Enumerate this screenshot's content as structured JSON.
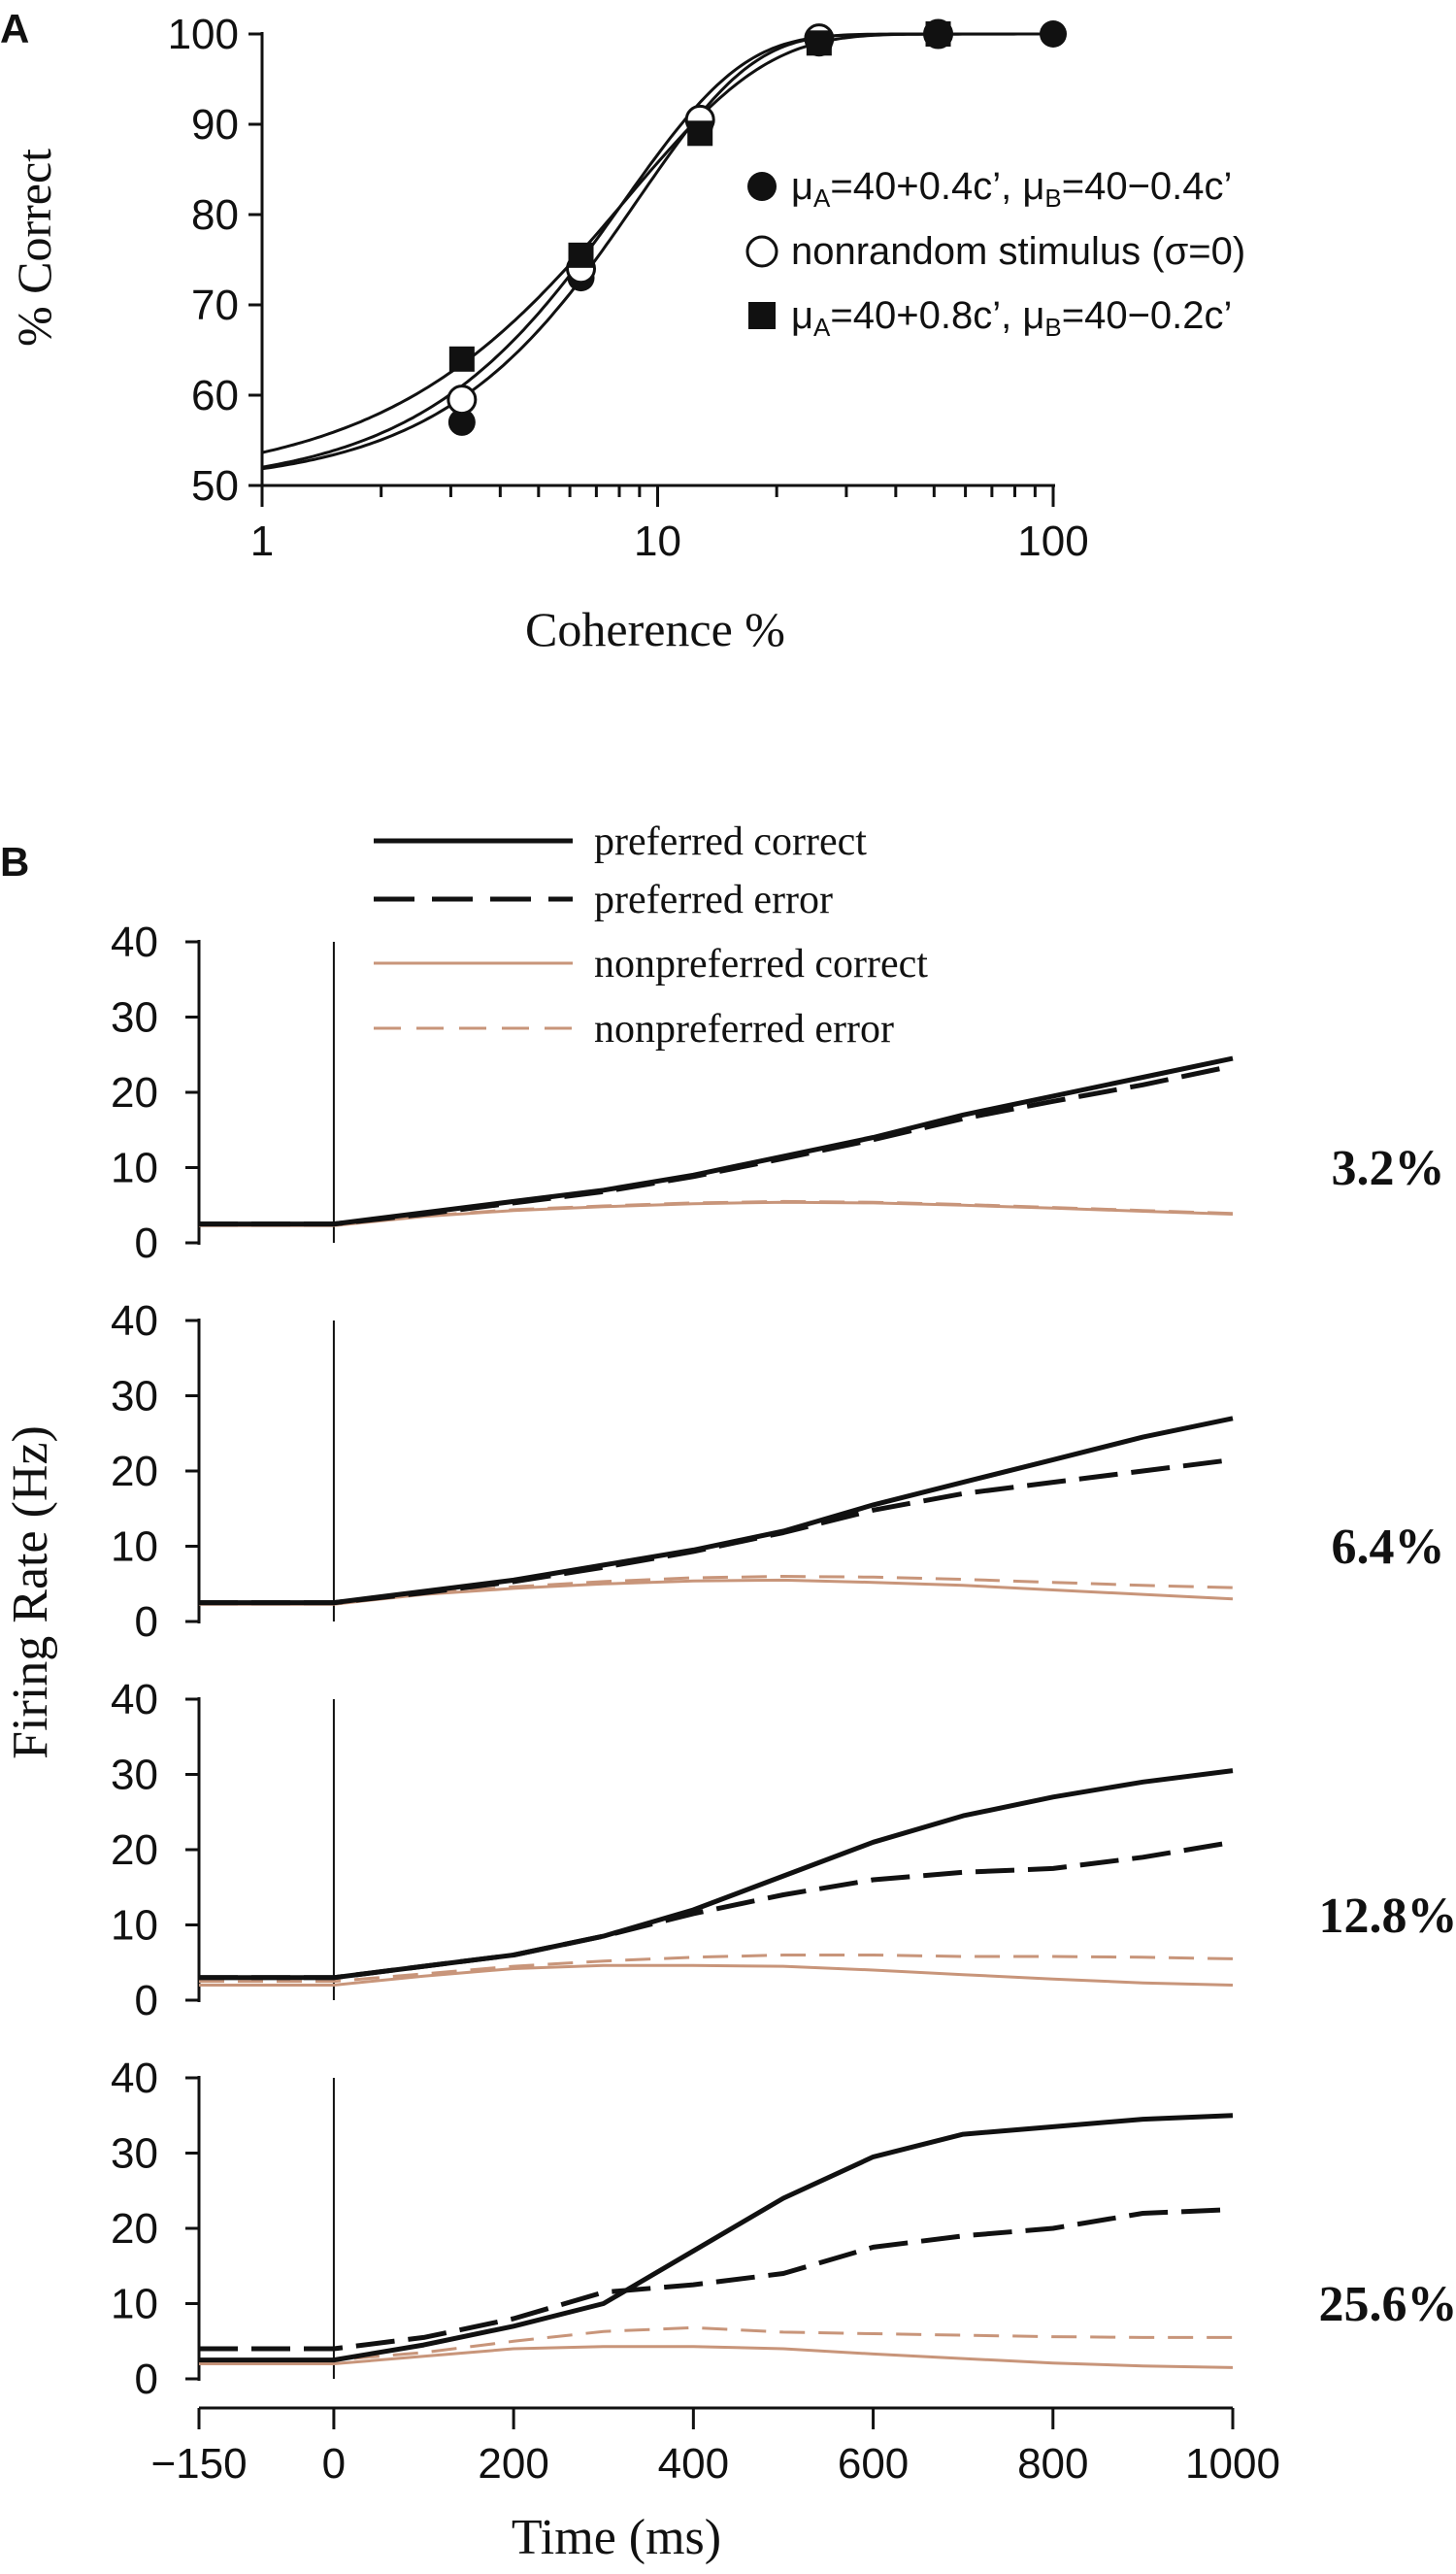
{
  "chart_data": [
    {
      "panel": "A",
      "type": "scatter",
      "xlabel": "Coherence %",
      "ylabel": "% Correct",
      "xscale": "log",
      "xlim": [
        1,
        100
      ],
      "ylim": [
        50,
        100
      ],
      "xticks": [
        1,
        10,
        100
      ],
      "yticks": [
        50,
        60,
        70,
        80,
        90,
        100
      ],
      "legend_position": "right",
      "grid": false,
      "series": [
        {
          "name_parts": [
            "μ",
            "A",
            "=40+0.4c’, μ",
            "B",
            "=40−0.4c’"
          ],
          "marker": "filled-circle",
          "x": [
            3.2,
            6.4,
            12.8,
            25.6,
            51.2,
            100
          ],
          "y": [
            57,
            73,
            90,
            99,
            100,
            100
          ]
        },
        {
          "name_parts": [
            "nonrandom stimulus (σ=0)"
          ],
          "marker": "open-circle",
          "x": [
            3.2,
            6.4,
            12.8,
            25.6,
            51.2
          ],
          "y": [
            59.5,
            74,
            90.5,
            99.5,
            100
          ]
        },
        {
          "name_parts": [
            "μ",
            "A",
            "=40+0.8c’, μ",
            "B",
            "=40−0.2c’"
          ],
          "marker": "filled-square",
          "x": [
            3.2,
            6.4,
            12.8,
            25.6,
            51.2
          ],
          "y": [
            64,
            75.5,
            89,
            99,
            100
          ]
        }
      ],
      "fits": [
        {
          "alpha": 8.2,
          "beta": 1.45,
          "offset": -0.3
        },
        {
          "alpha": 8.9,
          "beta": 1.5,
          "offset": 0
        },
        {
          "alpha": 8.3,
          "beta": 1.22,
          "offset": 0
        }
      ]
    },
    {
      "panel": "B",
      "type": "line",
      "xlabel": "Time (ms)",
      "ylabel": "Firing Rate (Hz)",
      "xlim": [
        -150,
        1000
      ],
      "ylim": [
        0,
        40
      ],
      "xticks": [
        "−150",
        "0",
        "200",
        "400",
        "600",
        "800",
        "1000"
      ],
      "xtick_values": [
        -150,
        0,
        200,
        400,
        600,
        800,
        1000
      ],
      "yticks": [
        0,
        10,
        20,
        30,
        40
      ],
      "stimulus_onset": 0,
      "legend_position": "top",
      "grid": false,
      "legend": [
        {
          "name": "preferred correct",
          "color": "#111111",
          "style": "solid"
        },
        {
          "name": "preferred error",
          "color": "#111111",
          "style": "dashed"
        },
        {
          "name": "nonpreferred correct",
          "color": "#c8957a",
          "style": "solid"
        },
        {
          "name": "nonpreferred error",
          "color": "#c8957a",
          "style": "dashed"
        }
      ],
      "subplots": [
        {
          "label": "3.2%",
          "t": [
            -150,
            0,
            100,
            200,
            300,
            400,
            500,
            600,
            700,
            800,
            900,
            1000
          ],
          "series": {
            "preferred correct": [
              2.5,
              2.5,
              4,
              5.5,
              7,
              9,
              11.5,
              14,
              17,
              19.5,
              22,
              24.5
            ],
            "preferred error": [
              2.5,
              2.5,
              3.8,
              5.3,
              6.8,
              8.8,
              11.2,
              13.7,
              16.5,
              18.8,
              21,
              23.5
            ],
            "nonpreferred correct": [
              2.3,
              2.3,
              3.5,
              4.3,
              4.8,
              5.2,
              5.4,
              5.3,
              5,
              4.6,
              4.2,
              3.8
            ],
            "nonpreferred error": [
              2.4,
              2.4,
              3.6,
              4.4,
              4.9,
              5.3,
              5.5,
              5.4,
              5.1,
              4.7,
              4.3,
              3.9
            ]
          }
        },
        {
          "label": "6.4%",
          "t": [
            -150,
            0,
            100,
            200,
            300,
            400,
            500,
            600,
            700,
            800,
            900,
            1000
          ],
          "series": {
            "preferred correct": [
              2.5,
              2.5,
              4,
              5.5,
              7.5,
              9.5,
              12,
              15.5,
              18.5,
              21.5,
              24.5,
              27
            ],
            "preferred error": [
              2.5,
              2.5,
              3.8,
              5.3,
              7.2,
              9.3,
              11.8,
              14.8,
              17,
              18.5,
              20,
              21.5
            ],
            "nonpreferred correct": [
              2.3,
              2.3,
              3.6,
              4.4,
              5,
              5.4,
              5.5,
              5.2,
              4.8,
              4.2,
              3.6,
              3
            ],
            "nonpreferred error": [
              2.4,
              2.4,
              3.7,
              4.6,
              5.3,
              5.8,
              6,
              5.9,
              5.6,
              5.2,
              4.8,
              4.5
            ]
          }
        },
        {
          "label": "12.8%",
          "t": [
            -150,
            0,
            100,
            200,
            300,
            400,
            500,
            600,
            700,
            800,
            900,
            1000
          ],
          "series": {
            "preferred correct": [
              3,
              3,
              4.5,
              6,
              8.5,
              12,
              16.5,
              21,
              24.5,
              27,
              29,
              30.5
            ],
            "preferred error": [
              3,
              3,
              4.5,
              6,
              8.5,
              11.5,
              14,
              16,
              17,
              17.5,
              19,
              21
            ],
            "nonpreferred correct": [
              2,
              2,
              3.2,
              4.2,
              4.6,
              4.6,
              4.5,
              4,
              3.4,
              2.8,
              2.3,
              2
            ],
            "nonpreferred error": [
              2.5,
              2.5,
              3.5,
              4.5,
              5.2,
              5.7,
              6,
              6,
              5.8,
              5.8,
              5.7,
              5.5
            ]
          }
        },
        {
          "label": "25.6%",
          "t": [
            -150,
            0,
            100,
            200,
            300,
            400,
            500,
            600,
            700,
            800,
            900,
            1000
          ],
          "series": {
            "preferred correct": [
              2.5,
              2.5,
              4.5,
              7,
              10,
              17,
              24,
              29.5,
              32.5,
              33.5,
              34.5,
              35
            ],
            "preferred error": [
              4,
              4,
              5.5,
              8,
              11.5,
              12.5,
              14,
              17.5,
              19,
              20,
              22,
              22.5
            ],
            "nonpreferred correct": [
              2,
              2,
              3,
              4,
              4.3,
              4.3,
              4,
              3.3,
              2.7,
              2.1,
              1.7,
              1.5
            ],
            "nonpreferred error": [
              2.5,
              2.5,
              3.5,
              5,
              6.3,
              6.8,
              6.2,
              6,
              5.8,
              5.6,
              5.5,
              5.5
            ]
          }
        }
      ]
    }
  ],
  "panel_labels": [
    "A",
    "B"
  ]
}
